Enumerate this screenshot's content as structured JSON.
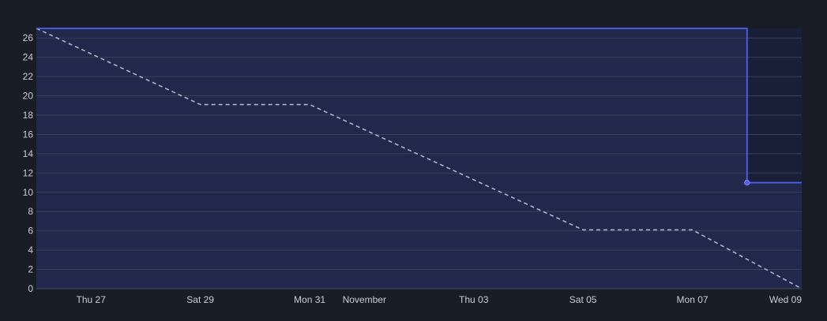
{
  "chart_data": {
    "type": "line",
    "title": "",
    "xlabel": "",
    "ylabel": "",
    "ylim": [
      0,
      27
    ],
    "y_ticks": [
      0,
      2,
      4,
      6,
      8,
      10,
      12,
      14,
      16,
      18,
      20,
      22,
      24,
      26
    ],
    "xlim": [
      "2022-10-26",
      "2022-11-09"
    ],
    "x_ticks": [
      {
        "date": "2022-10-27",
        "label": "Thu 27"
      },
      {
        "date": "2022-10-29",
        "label": "Sat 29"
      },
      {
        "date": "2022-10-31",
        "label": "Mon 31"
      },
      {
        "date": "2022-11-01",
        "label": "November"
      },
      {
        "date": "2022-11-03",
        "label": "Thu 03"
      },
      {
        "date": "2022-11-05",
        "label": "Sat 05"
      },
      {
        "date": "2022-11-07",
        "label": "Mon 07"
      },
      {
        "date": "2022-11-09",
        "label": "Wed 09"
      }
    ],
    "weekend_bands": [
      {
        "start": "2022-10-29",
        "end": "2022-10-31"
      },
      {
        "start": "2022-11-05",
        "end": "2022-11-07"
      }
    ],
    "grid": true,
    "legend": "none",
    "series": [
      {
        "style": "dashed",
        "color": "#aeb3cc",
        "points": [
          {
            "x": "2022-10-26",
            "y": 27
          },
          {
            "x": "2022-10-29",
            "y": 19.1
          },
          {
            "x": "2022-10-31",
            "y": 19.1
          },
          {
            "x": "2022-11-05",
            "y": 6.1
          },
          {
            "x": "2022-11-07",
            "y": 6.1
          },
          {
            "x": "2022-11-09",
            "y": 0
          }
        ]
      },
      {
        "style": "step",
        "color": "#4f5fe8",
        "fill": "#222a4f",
        "points": [
          {
            "x": "2022-10-26",
            "y": 27
          },
          {
            "x": "2022-11-08",
            "y": 27
          },
          {
            "x": "2022-11-08",
            "y": 11
          },
          {
            "x": "2022-11-09",
            "y": 11
          }
        ],
        "markers": [
          {
            "x": "2022-11-08",
            "y": 11
          }
        ]
      }
    ],
    "colors": {
      "background": "#181c24",
      "plot_area": "#1a1f38",
      "weekend_band": "#171c3d",
      "grid": "#3a3f55",
      "axis_line": "#4a4f62",
      "tick_text": "#c9ccd4"
    }
  }
}
